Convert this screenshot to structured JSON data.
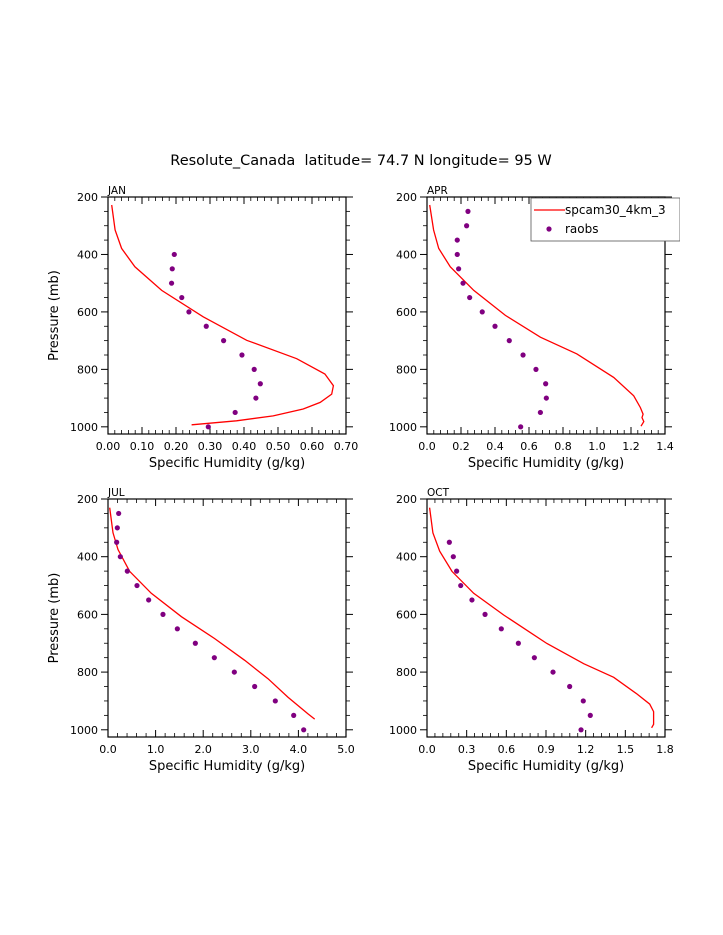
{
  "figure": {
    "title": "Resolute_Canada  latitude= 74.7 N longitude= 95 W"
  },
  "legend": {
    "entries": [
      {
        "label": "spcam30_4km_3",
        "type": "line",
        "color": "#ff0000"
      },
      {
        "label": "raobs",
        "type": "marker",
        "color": "#800080"
      }
    ],
    "placement": "top-right of APR panel (clipped)"
  },
  "colors": {
    "model_line": "#ff0000",
    "raobs_marker": "#800080",
    "axes": "#000000"
  },
  "chart_data": [
    {
      "type": "line",
      "panel": "JAN",
      "title": "JAN",
      "xlabel": "Specific Humidity (g/kg)",
      "ylabel": "Pressure (mb)",
      "xlim": [
        0,
        0.7
      ],
      "ylim": [
        1025,
        200
      ],
      "y_inverted": true,
      "xticks": [
        0.0,
        0.1,
        0.2,
        0.3,
        0.4,
        0.5,
        0.6,
        0.7
      ],
      "xtick_labels": [
        "0.00",
        "0.10",
        "0.20",
        "0.30",
        "0.40",
        "0.50",
        "0.60",
        "0.70"
      ],
      "yticks": [
        200,
        400,
        600,
        800,
        1000
      ],
      "ytick_labels": [
        "200",
        "400",
        "600",
        "800",
        "1000"
      ],
      "show_ylabel": true,
      "series": [
        {
          "name": "spcam30_4km_3",
          "kind": "line",
          "q": [
            0.011,
            0.021,
            0.04,
            0.079,
            0.158,
            0.28,
            0.408,
            0.555,
            0.638,
            0.663,
            0.658,
            0.624,
            0.574,
            0.486,
            0.378,
            0.246
          ],
          "p": [
            228,
            315,
            379,
            443,
            525,
            617,
            699,
            763,
            816,
            857,
            886,
            915,
            938,
            962,
            979,
            993
          ]
        },
        {
          "name": "raobs",
          "kind": "scatter",
          "q": [
            0.195,
            0.189,
            0.187,
            0.217,
            0.238,
            0.289,
            0.34,
            0.394,
            0.43,
            0.448,
            0.435,
            0.374,
            0.295
          ],
          "p": [
            400,
            450,
            500,
            550,
            600,
            650,
            700,
            750,
            800,
            850,
            900,
            950,
            1000
          ]
        }
      ]
    },
    {
      "type": "line",
      "panel": "APR",
      "title": "APR",
      "xlabel": "Specific Humidity (g/kg)",
      "ylabel": "",
      "xlim": [
        0,
        1.4
      ],
      "ylim": [
        1025,
        200
      ],
      "y_inverted": true,
      "xticks": [
        0.0,
        0.2,
        0.4,
        0.6,
        0.8,
        1.0,
        1.2,
        1.4
      ],
      "xtick_labels": [
        "0.0",
        "0.2",
        "0.4",
        "0.6",
        "0.8",
        "1.0",
        "1.2",
        "1.4"
      ],
      "yticks": [
        200,
        400,
        600,
        800,
        1000
      ],
      "ytick_labels": [
        "200",
        "400",
        "600",
        "800",
        "1000"
      ],
      "show_ylabel": false,
      "series": [
        {
          "name": "spcam30_4km_3",
          "kind": "line",
          "q": [
            0.016,
            0.039,
            0.069,
            0.137,
            0.275,
            0.461,
            0.667,
            0.882,
            1.098,
            1.216,
            1.255,
            1.271,
            1.265,
            1.275,
            1.259
          ],
          "p": [
            228,
            315,
            379,
            443,
            525,
            612,
            688,
            746,
            828,
            892,
            933,
            956,
            968,
            982,
            998
          ]
        },
        {
          "name": "raobs",
          "kind": "scatter",
          "q": [
            0.241,
            0.233,
            0.178,
            0.178,
            0.186,
            0.212,
            0.251,
            0.325,
            0.4,
            0.484,
            0.565,
            0.641,
            0.698,
            0.702,
            0.667,
            0.551
          ],
          "p": [
            250,
            300,
            350,
            400,
            450,
            500,
            550,
            600,
            650,
            700,
            750,
            800,
            850,
            900,
            950,
            1000
          ]
        }
      ]
    },
    {
      "type": "line",
      "panel": "JUL",
      "title": "JUL",
      "xlabel": "Specific Humidity (g/kg)",
      "ylabel": "Pressure (mb)",
      "xlim": [
        0,
        5.0
      ],
      "ylim": [
        1025,
        200
      ],
      "y_inverted": true,
      "xticks": [
        0.0,
        1.0,
        2.0,
        3.0,
        4.0,
        5.0
      ],
      "xtick_labels": [
        "0.0",
        "1.0",
        "2.0",
        "3.0",
        "4.0",
        "5.0"
      ],
      "yticks": [
        200,
        400,
        600,
        800,
        1000
      ],
      "ytick_labels": [
        "200",
        "400",
        "600",
        "800",
        "1000"
      ],
      "show_ylabel": true,
      "series": [
        {
          "name": "spcam30_4km_3",
          "kind": "line",
          "q": [
            0.035,
            0.105,
            0.21,
            0.455,
            0.91,
            1.541,
            2.241,
            2.871,
            3.361,
            3.782,
            4.202,
            4.342
          ],
          "p": [
            230,
            317,
            375,
            451,
            527,
            608,
            684,
            759,
            823,
            887,
            945,
            963
          ]
        },
        {
          "name": "raobs",
          "kind": "scatter",
          "q": [
            0.224,
            0.196,
            0.182,
            0.259,
            0.406,
            0.609,
            0.854,
            1.155,
            1.457,
            1.835,
            2.234,
            2.654,
            3.081,
            3.515,
            3.901,
            4.111
          ],
          "p": [
            250,
            300,
            350,
            400,
            450,
            500,
            550,
            600,
            650,
            700,
            750,
            800,
            850,
            900,
            950,
            1000
          ]
        }
      ]
    },
    {
      "type": "line",
      "panel": "OCT",
      "title": "OCT",
      "xlabel": "Specific Humidity (g/kg)",
      "ylabel": "",
      "xlim": [
        0,
        1.8
      ],
      "ylim": [
        1025,
        200
      ],
      "y_inverted": true,
      "xticks": [
        0.0,
        0.3,
        0.6,
        0.9,
        1.2,
        1.5,
        1.8
      ],
      "xtick_labels": [
        "0.0",
        "0.3",
        "0.6",
        "0.9",
        "1.2",
        "1.5",
        "1.8"
      ],
      "yticks": [
        200,
        400,
        600,
        800,
        1000
      ],
      "ytick_labels": [
        "200",
        "400",
        "600",
        "800",
        "1000"
      ],
      "show_ylabel": false,
      "series": [
        {
          "name": "spcam30_4km_3",
          "kind": "line",
          "q": [
            0.02,
            0.045,
            0.096,
            0.189,
            0.353,
            0.58,
            0.907,
            1.185,
            1.412,
            1.588,
            1.684,
            1.714,
            1.714,
            1.714,
            1.699
          ],
          "p": [
            230,
            317,
            381,
            451,
            527,
            602,
            701,
            771,
            818,
            876,
            911,
            937,
            952,
            981,
            993
          ]
        },
        {
          "name": "raobs",
          "kind": "scatter",
          "q": [
            0.169,
            0.199,
            0.224,
            0.255,
            0.34,
            0.439,
            0.562,
            0.691,
            0.812,
            0.953,
            1.079,
            1.182,
            1.235,
            1.165
          ],
          "p": [
            350,
            400,
            450,
            500,
            550,
            600,
            650,
            700,
            750,
            800,
            850,
            900,
            950,
            1000
          ]
        }
      ]
    }
  ]
}
